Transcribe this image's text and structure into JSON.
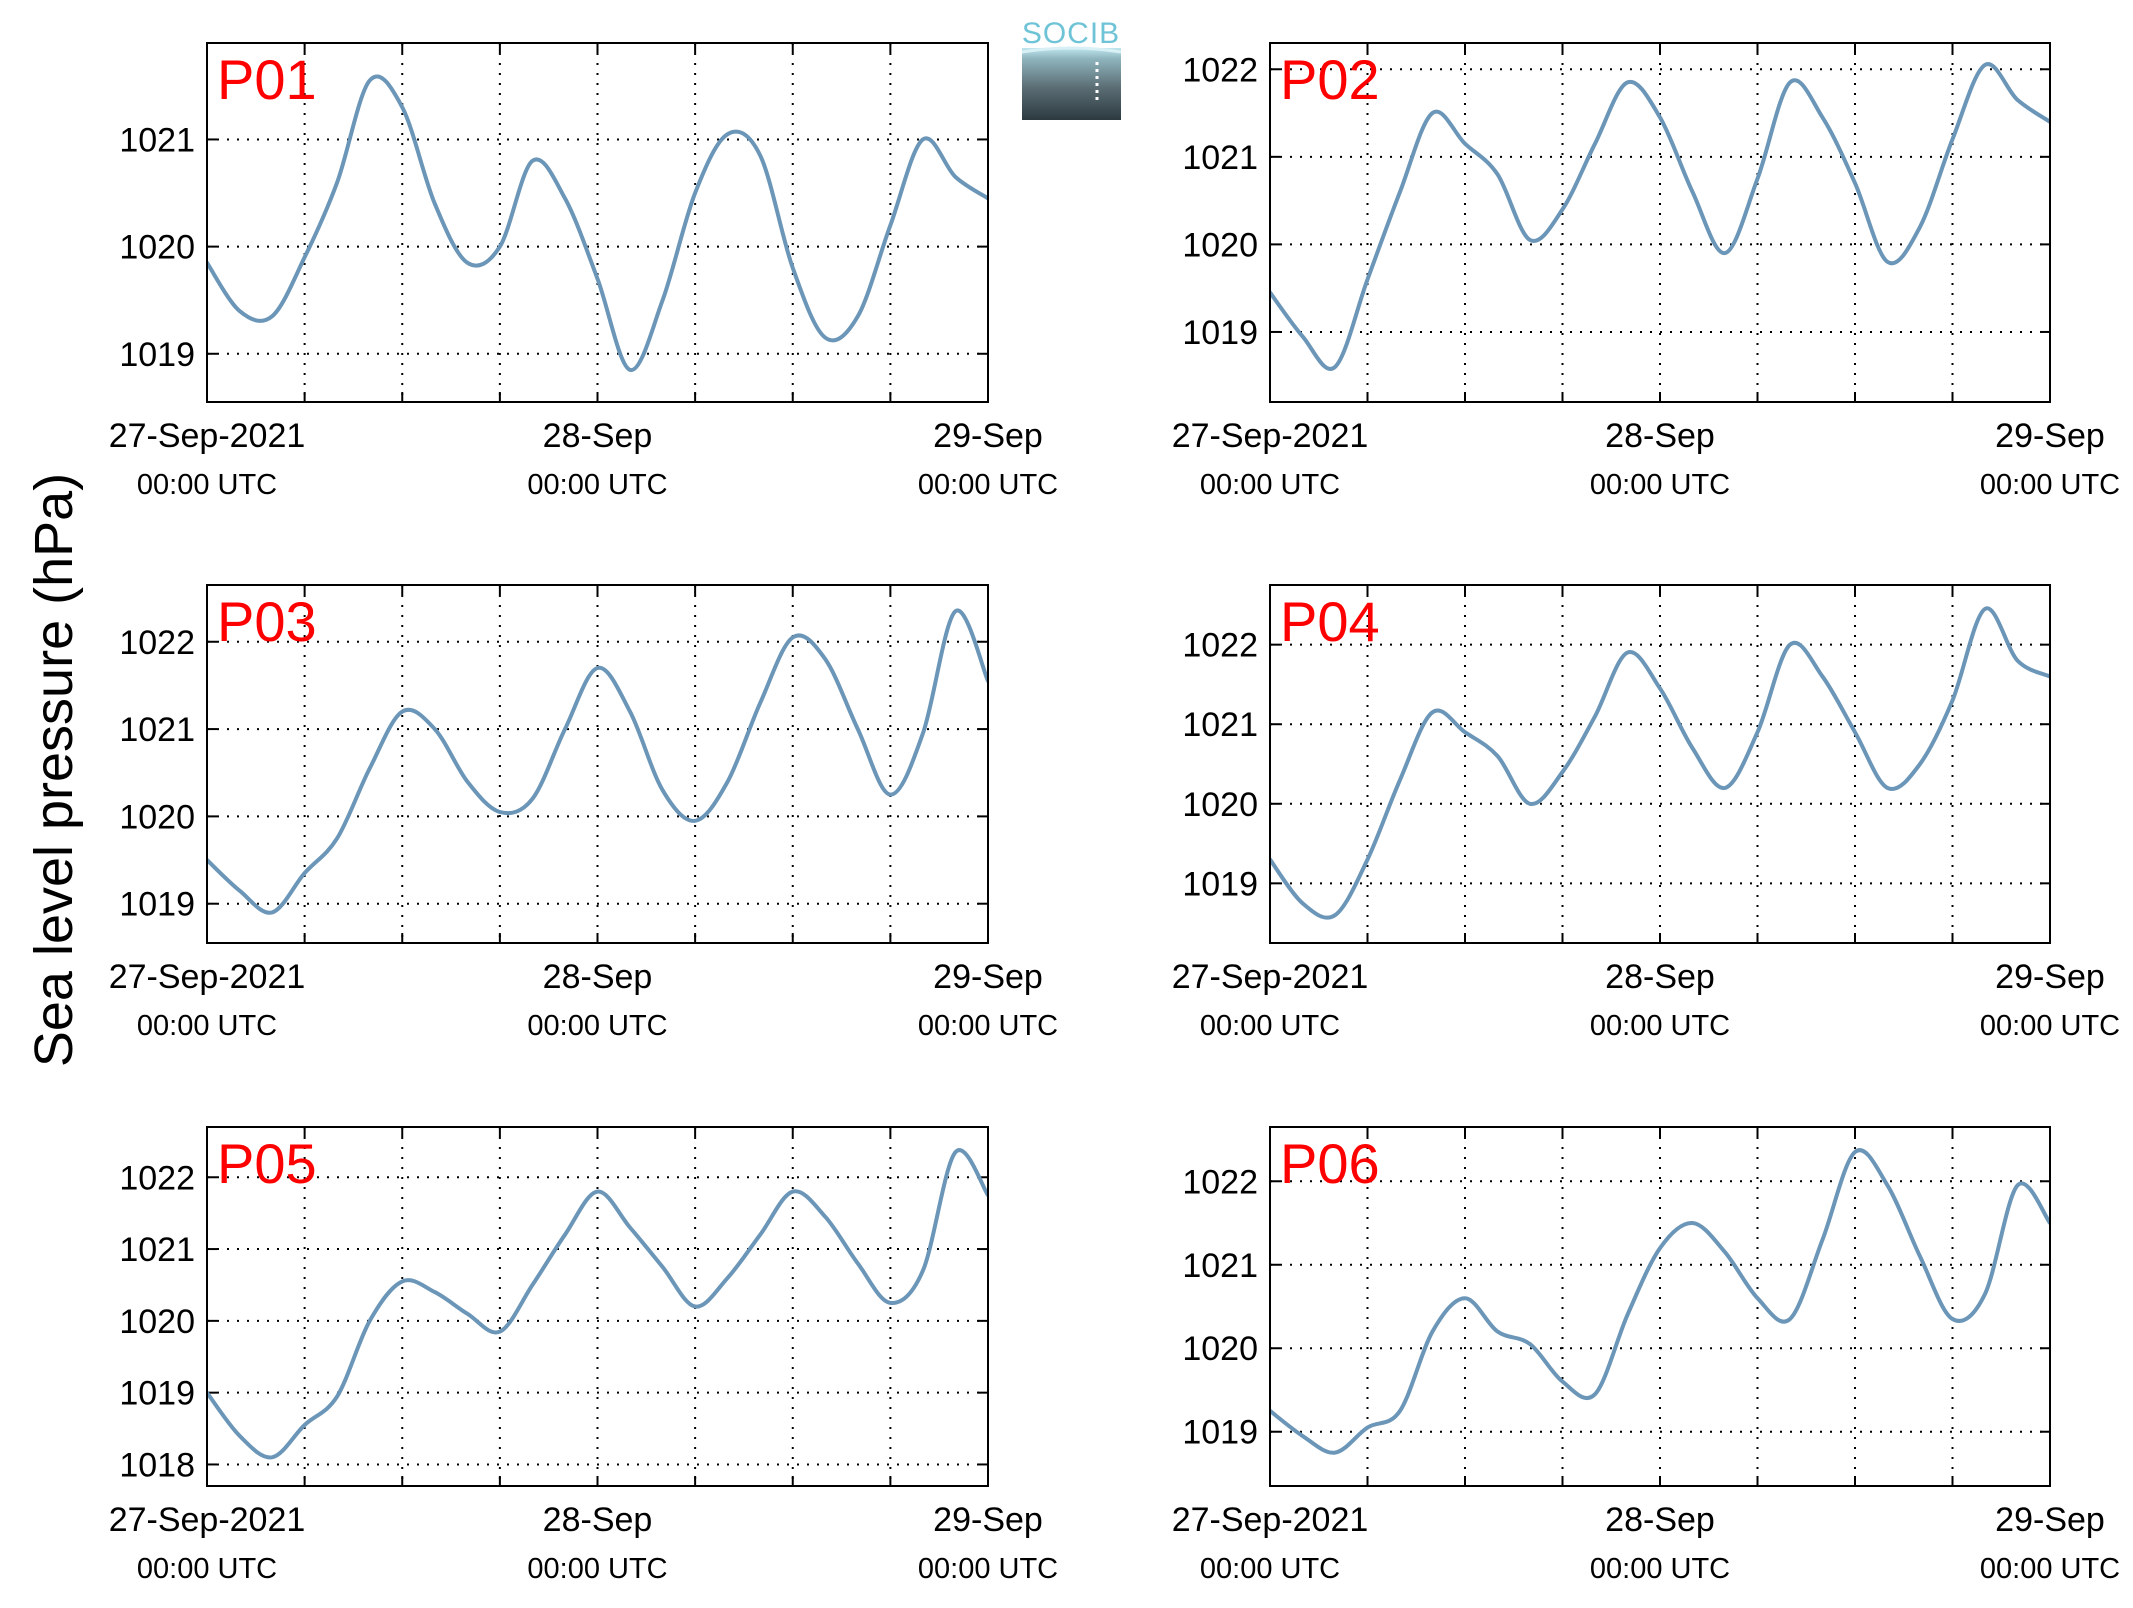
{
  "figure": {
    "ylabel": "Sea level pressure (hPa)",
    "logo_text": "SOCIB"
  },
  "colors": {
    "line": "#6b96b8",
    "panel_label": "#ff0000",
    "logo": "#6ec3d6"
  },
  "chart_data": [
    {
      "type": "line",
      "label": "P01",
      "x": [
        "2021-09-27 00:00",
        "2021-09-27 02:00",
        "2021-09-27 04:00",
        "2021-09-27 06:00",
        "2021-09-27 08:00",
        "2021-09-27 10:00",
        "2021-09-27 12:00",
        "2021-09-27 14:00",
        "2021-09-27 16:00",
        "2021-09-27 18:00",
        "2021-09-27 20:00",
        "2021-09-27 22:00",
        "2021-09-28 00:00",
        "2021-09-28 02:00",
        "2021-09-28 04:00",
        "2021-09-28 06:00",
        "2021-09-28 08:00",
        "2021-09-28 10:00",
        "2021-09-28 12:00",
        "2021-09-28 14:00",
        "2021-09-28 16:00",
        "2021-09-28 18:00",
        "2021-09-28 20:00",
        "2021-09-28 22:00",
        "2021-09-29 00:00"
      ],
      "values": [
        1019.85,
        1019.4,
        1019.35,
        1019.9,
        1020.6,
        1021.55,
        1021.3,
        1020.4,
        1019.85,
        1020.0,
        1020.8,
        1020.45,
        1019.7,
        1018.85,
        1019.5,
        1020.5,
        1021.05,
        1020.85,
        1019.8,
        1019.15,
        1019.35,
        1020.2,
        1021.0,
        1020.65,
        1020.45
      ],
      "yticks": [
        1019,
        1020,
        1021
      ],
      "ylim": [
        1018.55,
        1021.9
      ],
      "xticks": [
        [
          "27-Sep-2021",
          "00:00 UTC"
        ],
        [
          "28-Sep",
          "00:00 UTC"
        ],
        [
          "29-Sep",
          "00:00 UTC"
        ]
      ],
      "grid": true
    },
    {
      "type": "line",
      "label": "P02",
      "x": [
        "2021-09-27 00:00",
        "2021-09-27 02:00",
        "2021-09-27 04:00",
        "2021-09-27 06:00",
        "2021-09-27 08:00",
        "2021-09-27 10:00",
        "2021-09-27 12:00",
        "2021-09-27 14:00",
        "2021-09-27 16:00",
        "2021-09-27 18:00",
        "2021-09-27 20:00",
        "2021-09-27 22:00",
        "2021-09-28 00:00",
        "2021-09-28 02:00",
        "2021-09-28 04:00",
        "2021-09-28 06:00",
        "2021-09-28 08:00",
        "2021-09-28 10:00",
        "2021-09-28 12:00",
        "2021-09-28 14:00",
        "2021-09-28 16:00",
        "2021-09-28 18:00",
        "2021-09-28 20:00",
        "2021-09-28 22:00",
        "2021-09-29 00:00"
      ],
      "values": [
        1019.45,
        1018.95,
        1018.6,
        1019.6,
        1020.6,
        1021.5,
        1021.15,
        1020.8,
        1020.05,
        1020.4,
        1021.15,
        1021.85,
        1021.45,
        1020.6,
        1019.9,
        1020.75,
        1021.85,
        1021.45,
        1020.7,
        1019.8,
        1020.2,
        1021.2,
        1022.05,
        1021.65,
        1021.4
      ],
      "yticks": [
        1019,
        1020,
        1021,
        1022
      ],
      "ylim": [
        1018.2,
        1022.3
      ],
      "xticks": [
        [
          "27-Sep-2021",
          "00:00 UTC"
        ],
        [
          "28-Sep",
          "00:00 UTC"
        ],
        [
          "29-Sep",
          "00:00 UTC"
        ]
      ],
      "grid": true
    },
    {
      "type": "line",
      "label": "P03",
      "x": [
        "2021-09-27 00:00",
        "2021-09-27 02:00",
        "2021-09-27 04:00",
        "2021-09-27 06:00",
        "2021-09-27 08:00",
        "2021-09-27 10:00",
        "2021-09-27 12:00",
        "2021-09-27 14:00",
        "2021-09-27 16:00",
        "2021-09-27 18:00",
        "2021-09-27 20:00",
        "2021-09-27 22:00",
        "2021-09-28 00:00",
        "2021-09-28 02:00",
        "2021-09-28 04:00",
        "2021-09-28 06:00",
        "2021-09-28 08:00",
        "2021-09-28 10:00",
        "2021-09-28 12:00",
        "2021-09-28 14:00",
        "2021-09-28 16:00",
        "2021-09-28 18:00",
        "2021-09-28 20:00",
        "2021-09-28 22:00",
        "2021-09-29 00:00"
      ],
      "values": [
        1019.5,
        1019.15,
        1018.9,
        1019.35,
        1019.75,
        1020.55,
        1021.2,
        1021.0,
        1020.4,
        1020.05,
        1020.2,
        1021.0,
        1021.7,
        1021.2,
        1020.3,
        1019.95,
        1020.4,
        1021.3,
        1022.05,
        1021.8,
        1021.0,
        1020.25,
        1020.95,
        1022.35,
        1021.55
      ],
      "yticks": [
        1019,
        1020,
        1021,
        1022
      ],
      "ylim": [
        1018.55,
        1022.65
      ],
      "xticks": [
        [
          "27-Sep-2021",
          "00:00 UTC"
        ],
        [
          "28-Sep",
          "00:00 UTC"
        ],
        [
          "29-Sep",
          "00:00 UTC"
        ]
      ],
      "grid": true
    },
    {
      "type": "line",
      "label": "P04",
      "x": [
        "2021-09-27 00:00",
        "2021-09-27 02:00",
        "2021-09-27 04:00",
        "2021-09-27 06:00",
        "2021-09-27 08:00",
        "2021-09-27 10:00",
        "2021-09-27 12:00",
        "2021-09-27 14:00",
        "2021-09-27 16:00",
        "2021-09-27 18:00",
        "2021-09-27 20:00",
        "2021-09-27 22:00",
        "2021-09-28 00:00",
        "2021-09-28 02:00",
        "2021-09-28 04:00",
        "2021-09-28 06:00",
        "2021-09-28 08:00",
        "2021-09-28 10:00",
        "2021-09-28 12:00",
        "2021-09-28 14:00",
        "2021-09-28 16:00",
        "2021-09-28 18:00",
        "2021-09-28 20:00",
        "2021-09-28 22:00",
        "2021-09-29 00:00"
      ],
      "values": [
        1019.3,
        1018.75,
        1018.6,
        1019.3,
        1020.3,
        1021.15,
        1020.9,
        1020.6,
        1020.0,
        1020.4,
        1021.1,
        1021.9,
        1021.45,
        1020.7,
        1020.2,
        1020.9,
        1022.0,
        1021.6,
        1020.9,
        1020.2,
        1020.5,
        1021.3,
        1022.45,
        1021.8,
        1021.6
      ],
      "yticks": [
        1019,
        1020,
        1021,
        1022
      ],
      "ylim": [
        1018.25,
        1022.75
      ],
      "xticks": [
        [
          "27-Sep-2021",
          "00:00 UTC"
        ],
        [
          "28-Sep",
          "00:00 UTC"
        ],
        [
          "29-Sep",
          "00:00 UTC"
        ]
      ],
      "grid": true
    },
    {
      "type": "line",
      "label": "P05",
      "x": [
        "2021-09-27 00:00",
        "2021-09-27 02:00",
        "2021-09-27 04:00",
        "2021-09-27 06:00",
        "2021-09-27 08:00",
        "2021-09-27 10:00",
        "2021-09-27 12:00",
        "2021-09-27 14:00",
        "2021-09-27 16:00",
        "2021-09-27 18:00",
        "2021-09-27 20:00",
        "2021-09-27 22:00",
        "2021-09-28 00:00",
        "2021-09-28 02:00",
        "2021-09-28 04:00",
        "2021-09-28 06:00",
        "2021-09-28 08:00",
        "2021-09-28 10:00",
        "2021-09-28 12:00",
        "2021-09-28 14:00",
        "2021-09-28 16:00",
        "2021-09-28 18:00",
        "2021-09-28 20:00",
        "2021-09-28 22:00",
        "2021-09-29 00:00"
      ],
      "values": [
        1019.0,
        1018.4,
        1018.1,
        1018.55,
        1018.95,
        1020.0,
        1020.55,
        1020.4,
        1020.1,
        1019.85,
        1020.5,
        1021.2,
        1021.8,
        1021.3,
        1020.75,
        1020.2,
        1020.6,
        1021.2,
        1021.8,
        1021.45,
        1020.8,
        1020.25,
        1020.7,
        1022.35,
        1021.75
      ],
      "yticks": [
        1018,
        1019,
        1020,
        1021,
        1022
      ],
      "ylim": [
        1017.7,
        1022.7
      ],
      "xticks": [
        [
          "27-Sep-2021",
          "00:00 UTC"
        ],
        [
          "28-Sep",
          "00:00 UTC"
        ],
        [
          "29-Sep",
          "00:00 UTC"
        ]
      ],
      "grid": true
    },
    {
      "type": "line",
      "label": "P06",
      "x": [
        "2021-09-27 00:00",
        "2021-09-27 02:00",
        "2021-09-27 04:00",
        "2021-09-27 06:00",
        "2021-09-27 08:00",
        "2021-09-27 10:00",
        "2021-09-27 12:00",
        "2021-09-27 14:00",
        "2021-09-27 16:00",
        "2021-09-27 18:00",
        "2021-09-27 20:00",
        "2021-09-27 22:00",
        "2021-09-28 00:00",
        "2021-09-28 02:00",
        "2021-09-28 04:00",
        "2021-09-28 06:00",
        "2021-09-28 08:00",
        "2021-09-28 10:00",
        "2021-09-28 12:00",
        "2021-09-28 14:00",
        "2021-09-28 16:00",
        "2021-09-28 18:00",
        "2021-09-28 20:00",
        "2021-09-28 22:00",
        "2021-09-29 00:00"
      ],
      "values": [
        1019.25,
        1018.95,
        1018.75,
        1019.05,
        1019.25,
        1020.2,
        1020.6,
        1020.2,
        1020.05,
        1019.6,
        1019.45,
        1020.4,
        1021.2,
        1021.5,
        1021.15,
        1020.6,
        1020.35,
        1021.3,
        1022.35,
        1021.95,
        1021.1,
        1020.35,
        1020.65,
        1021.95,
        1021.5
      ],
      "yticks": [
        1019,
        1020,
        1021,
        1022
      ],
      "ylim": [
        1018.35,
        1022.65
      ],
      "xticks": [
        [
          "27-Sep-2021",
          "00:00 UTC"
        ],
        [
          "28-Sep",
          "00:00 UTC"
        ],
        [
          "29-Sep",
          "00:00 UTC"
        ]
      ],
      "grid": true
    }
  ]
}
